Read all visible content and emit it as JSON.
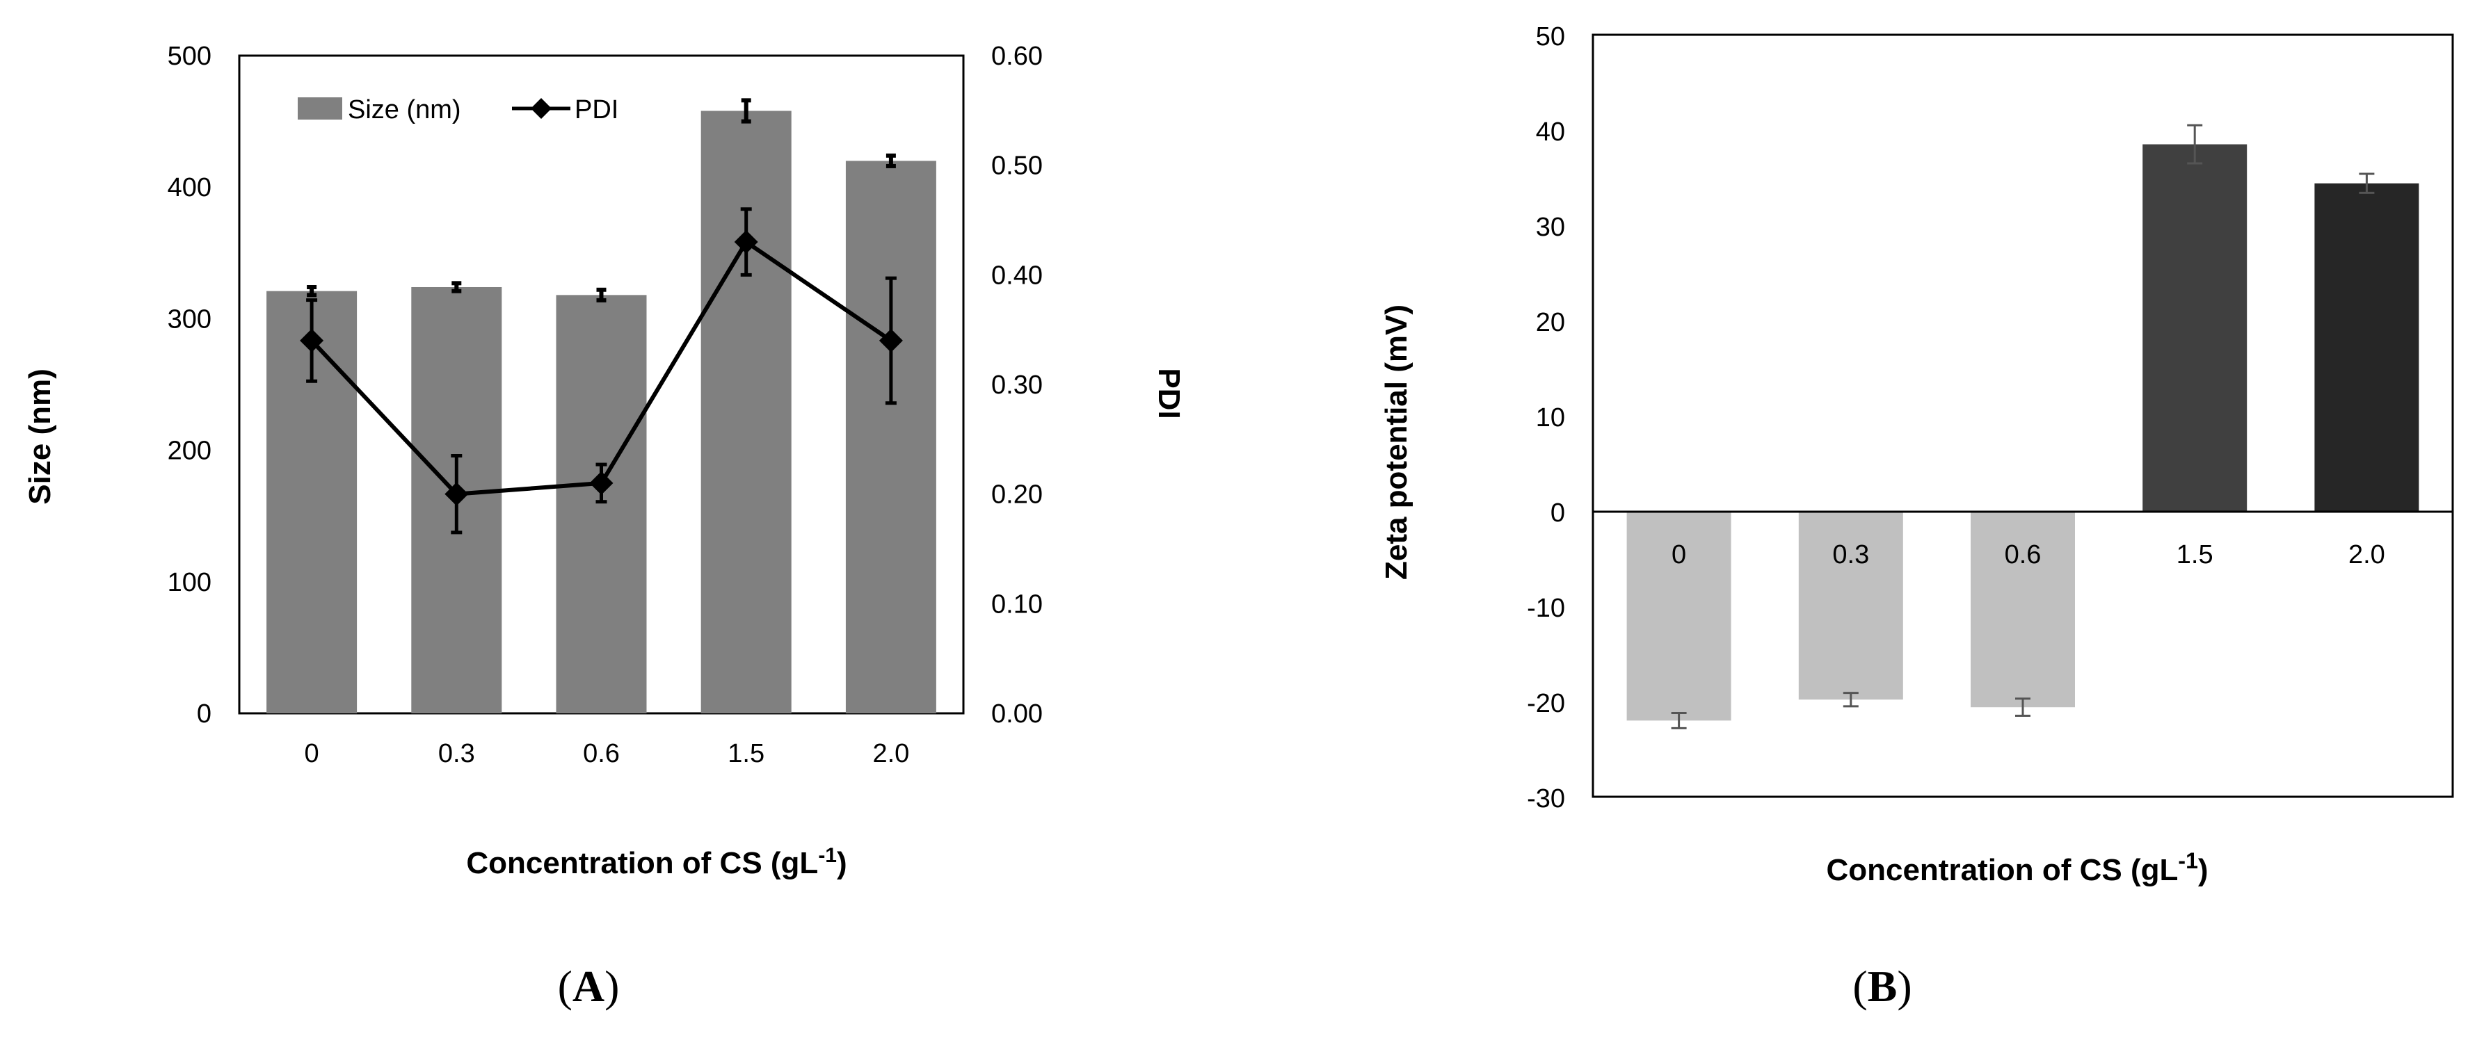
{
  "chart_data": [
    {
      "panel": "A",
      "panel_label": "A",
      "type": "bar",
      "categories": [
        "0",
        "0.3",
        "0.6",
        "1.5",
        "2.0"
      ],
      "xlabel": "Concentration of CS (gL",
      "xlabel_superscript": "-1",
      "xlabel_close": ")",
      "series": [
        {
          "name": "Size (nm)",
          "type": "bar",
          "axis": "left",
          "color": "#808080",
          "values": [
            321,
            324,
            318,
            458,
            420
          ],
          "errors": [
            3,
            3,
            4,
            8,
            4
          ]
        },
        {
          "name": "PDI",
          "type": "line",
          "axis": "right",
          "color": "#000000",
          "marker": "diamond",
          "values": [
            0.34,
            0.2,
            0.21,
            0.43,
            0.34
          ],
          "errors": [
            0.037,
            0.035,
            0.017,
            0.03,
            0.057
          ]
        }
      ],
      "left_axis": {
        "label": "Size (nm)",
        "ylim": [
          0,
          500
        ],
        "ticks": [
          "0",
          "100",
          "200",
          "300",
          "400",
          "500"
        ]
      },
      "right_axis": {
        "label": "PDI",
        "ylim": [
          0,
          0.6
        ],
        "ticks": [
          "0.00",
          "0.10",
          "0.20",
          "0.30",
          "0.40",
          "0.50",
          "0.60"
        ]
      },
      "legend": {
        "placement": "top-left",
        "entries": [
          "Size (nm)",
          "PDI"
        ]
      }
    },
    {
      "panel": "B",
      "panel_label": "B",
      "type": "bar",
      "categories": [
        "0",
        "0.3",
        "0.6",
        "1.5",
        "2.0"
      ],
      "values": [
        -22.0,
        -19.8,
        -20.6,
        38.5,
        34.4
      ],
      "errors": [
        0.8,
        0.7,
        0.9,
        2.0,
        1.0
      ],
      "colors": [
        "#c0c0c0",
        "#c0c0c0",
        "#c0c0c0",
        "#404040",
        "#262626"
      ],
      "ylabel": "Zeta potential (mV)",
      "xlabel": "Concentration of CS (gL",
      "xlabel_superscript": "-1",
      "xlabel_close": ")",
      "ylim": [
        -30,
        50
      ],
      "ticks": [
        "-30",
        "-20",
        "-10",
        "0",
        "10",
        "20",
        "30",
        "40",
        "50"
      ]
    }
  ]
}
